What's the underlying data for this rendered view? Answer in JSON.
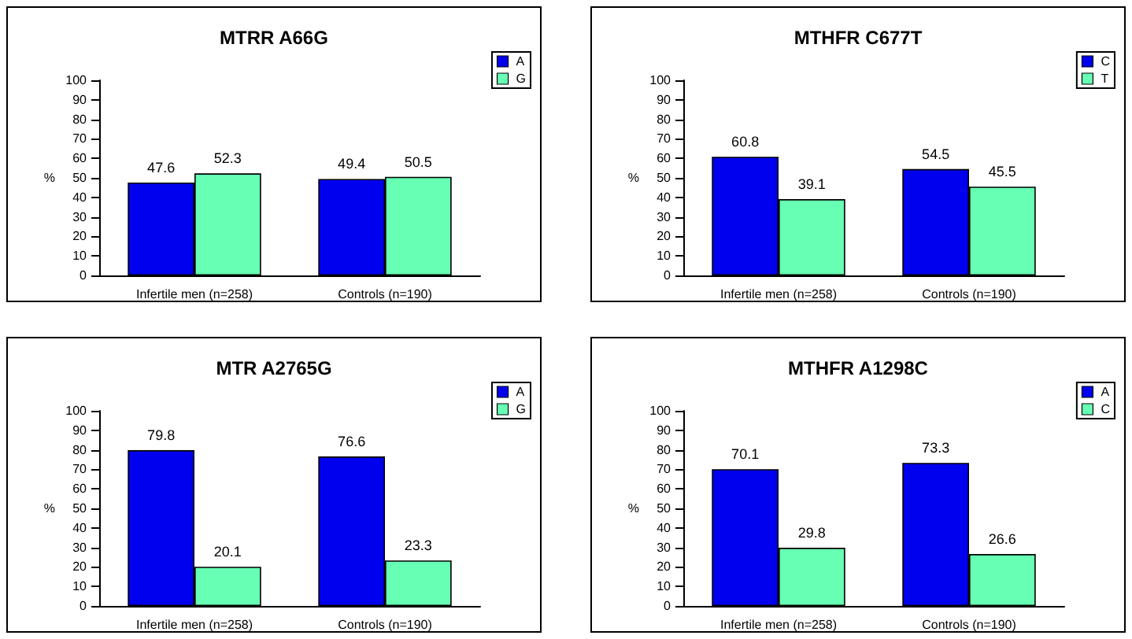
{
  "chart_data": [
    {
      "type": "bar",
      "title": "MTRR A66G",
      "ylabel": "%",
      "categories": [
        "Infertile men (n=258)",
        "Controls (n=190)"
      ],
      "series": [
        {
          "name": "A",
          "color": "#0000ee",
          "values": [
            47.6,
            49.4
          ]
        },
        {
          "name": "G",
          "color": "#66ffb3",
          "values": [
            52.3,
            50.5
          ]
        }
      ],
      "ylim": [
        0,
        100
      ],
      "yticks": [
        0,
        10,
        20,
        30,
        40,
        50,
        60,
        70,
        80,
        90,
        100
      ],
      "data_labels": true,
      "legend": "top right"
    },
    {
      "type": "bar",
      "title": "MTHFR C677T",
      "ylabel": "%",
      "categories": [
        "Infertile men (n=258)",
        "Controls (n=190)"
      ],
      "series": [
        {
          "name": "C",
          "color": "#0000ee",
          "values": [
            60.8,
            54.5
          ]
        },
        {
          "name": "T",
          "color": "#66ffb3",
          "values": [
            39.1,
            45.5
          ]
        }
      ],
      "ylim": [
        0,
        100
      ],
      "yticks": [
        0,
        10,
        20,
        30,
        40,
        50,
        60,
        70,
        80,
        90,
        100
      ],
      "data_labels": true,
      "legend": "top right"
    },
    {
      "type": "bar",
      "title": "MTR A2765G",
      "ylabel": "%",
      "categories": [
        "Infertile men (n=258)",
        "Controls (n=190)"
      ],
      "series": [
        {
          "name": "A",
          "color": "#0000ee",
          "values": [
            79.8,
            76.6
          ]
        },
        {
          "name": "G",
          "color": "#66ffb3",
          "values": [
            20.1,
            23.3
          ]
        }
      ],
      "ylim": [
        0,
        100
      ],
      "yticks": [
        0,
        10,
        20,
        30,
        40,
        50,
        60,
        70,
        80,
        90,
        100
      ],
      "data_labels": true,
      "legend": "top right"
    },
    {
      "type": "bar",
      "title": "MTHFR A1298C",
      "ylabel": "%",
      "categories": [
        "Infertile men (n=258)",
        "Controls (n=190)"
      ],
      "series": [
        {
          "name": "A",
          "color": "#0000ee",
          "values": [
            70.1,
            73.3
          ]
        },
        {
          "name": "C",
          "color": "#66ffb3",
          "values": [
            29.8,
            26.6
          ]
        }
      ],
      "ylim": [
        0,
        100
      ],
      "yticks": [
        0,
        10,
        20,
        30,
        40,
        50,
        60,
        70,
        80,
        90,
        100
      ],
      "data_labels": true,
      "legend": "top right"
    }
  ]
}
